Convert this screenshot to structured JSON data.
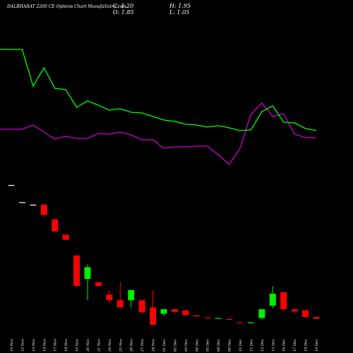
{
  "chart_data": {
    "type": "candlestick",
    "title": "DALBHARAT 2200 CE Options Chart MunafaSutra.com",
    "ohlc_header": {
      "c": "C: 1.20",
      "o": "O: 1.85",
      "h": "H: 1.95",
      "l": "L: 1.05"
    },
    "colors": {
      "background": "#000000",
      "up": "#00ee00",
      "down": "#ff0000",
      "line_green": "#00ff00",
      "line_magenta": "#cc00cc",
      "flat": "#ffffff"
    },
    "categories": [
      "10 Nov",
      "12 Nov",
      "13 Nov",
      "14 Nov",
      "17 Nov",
      "18 Nov",
      "19 Nov",
      "20 Nov",
      "21 Nov",
      "24 Nov",
      "25 Nov",
      "26 Nov",
      "27 Nov",
      "28 Nov",
      "01 Dec",
      "02 Dec",
      "03 Dec",
      "04 Dec",
      "05 Dec",
      "08 Dec",
      "09 Dec",
      "10 Dec",
      "11 Dec",
      "12 Dec",
      "15 Dec",
      "16 Dec",
      "17 Dec",
      "18 Dec",
      "19 Dec"
    ],
    "candles": [
      {
        "o": 65,
        "h": 65,
        "l": 65,
        "c": 65
      },
      {
        "o": 50,
        "h": 50,
        "l": 50,
        "c": 50
      },
      {
        "o": 48,
        "h": 48,
        "l": 48,
        "c": 48
      },
      {
        "o": 48,
        "h": 48,
        "l": 40,
        "c": 40
      },
      {
        "o": 37,
        "h": 37,
        "l": 29,
        "c": 29
      },
      {
        "o": 27,
        "h": 27,
        "l": 24,
        "c": 24
      },
      {
        "o": 16,
        "h": 16,
        "l": 5,
        "c": 5
      },
      {
        "o": 7,
        "h": 12,
        "l": 2,
        "c": 11
      },
      {
        "o": 6,
        "h": 6,
        "l": 5,
        "c": 5
      },
      {
        "o": 3,
        "h": 4,
        "l": 1.5,
        "c": 2
      },
      {
        "o": 2,
        "h": 6,
        "l": 1,
        "c": 1
      },
      {
        "o": 2,
        "h": 4,
        "l": 1,
        "c": 4
      },
      {
        "o": 2,
        "h": 2,
        "l": 0.5,
        "c": 0.5
      },
      {
        "o": 1,
        "h": 4,
        "l": 0,
        "c": 0
      },
      {
        "o": 0.4,
        "h": 0.8,
        "l": 0.25,
        "c": 0.8
      },
      {
        "o": 0.8,
        "h": 0.8,
        "l": 0.45,
        "c": 0.55
      },
      {
        "o": 0.7,
        "h": 0.7,
        "l": 0.3,
        "c": 0.3
      },
      {
        "o": 0.3,
        "h": 0.3,
        "l": 0.23,
        "c": 0.23
      },
      {
        "o": 0.18,
        "h": 0.18,
        "l": 0.14,
        "c": 0.15
      },
      {
        "o": 0.12,
        "h": 0.15,
        "l": 0.1,
        "c": 0.15
      },
      {
        "o": 0.11,
        "h": 0.11,
        "l": 0.07,
        "c": 0.08
      },
      {
        "o": 0.02,
        "h": 0.02,
        "l": 0.01,
        "c": 0.01
      },
      {
        "o": 0.01,
        "h": 0.03,
        "l": 0.01,
        "c": 0.02
      },
      {
        "o": 0.15,
        "h": 0.85,
        "l": 0.1,
        "c": 0.8
      },
      {
        "o": 1.2,
        "h": 5,
        "l": 0.9,
        "c": 3.2
      },
      {
        "o": 3.5,
        "h": 3.5,
        "l": 0.6,
        "c": 0.8
      },
      {
        "o": 0.8,
        "h": 0.8,
        "l": 0.45,
        "c": 0.6
      },
      {
        "o": 0.7,
        "h": 0.7,
        "l": 0.2,
        "c": 0.2
      },
      {
        "o": 0.2,
        "h": 0.2,
        "l": 0.12,
        "c": 0.12
      }
    ],
    "green_line": [
      0.0,
      0.0,
      52.0,
      26.0,
      55.0,
      57.0,
      82.0,
      73.0,
      79.0,
      86.0,
      84.0,
      89.0,
      90.0,
      95.0,
      100.0,
      102.0,
      106.0,
      107.0,
      110.0,
      108.0,
      111.0,
      115.0,
      114.0,
      88.0,
      80.0,
      103.0,
      104.0,
      112.0,
      115.0
    ],
    "magenta_line": [
      113.0,
      113.0,
      107.0,
      117.0,
      127.0,
      123.0,
      126.0,
      126.0,
      119.0,
      120.0,
      117.0,
      121.0,
      128.0,
      128.0,
      140.0,
      138.0,
      138.0,
      137.0,
      137.0,
      149.0,
      163.0,
      140.0,
      92.0,
      76.0,
      95.0,
      91.0,
      120.0,
      125.0,
      125.0
    ]
  }
}
